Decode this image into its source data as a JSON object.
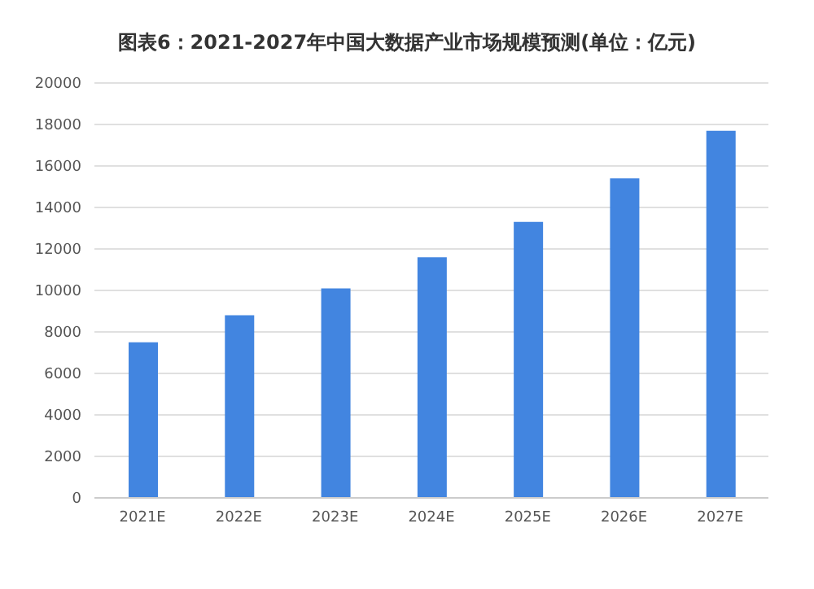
{
  "chart_data": {
    "type": "bar",
    "title": "图表6：2021-2027年中国大数据产业市场规模预测(单位：亿元)",
    "categories": [
      "2021E",
      "2022E",
      "2023E",
      "2024E",
      "2025E",
      "2026E",
      "2027E"
    ],
    "values": [
      7500,
      8800,
      10100,
      11600,
      13300,
      15400,
      17700
    ],
    "color": "#4285e0",
    "ylim": [
      0,
      20000
    ],
    "yticks": [
      0,
      2000,
      4000,
      6000,
      8000,
      10000,
      12000,
      14000,
      16000,
      18000,
      20000
    ],
    "grid": "y"
  }
}
